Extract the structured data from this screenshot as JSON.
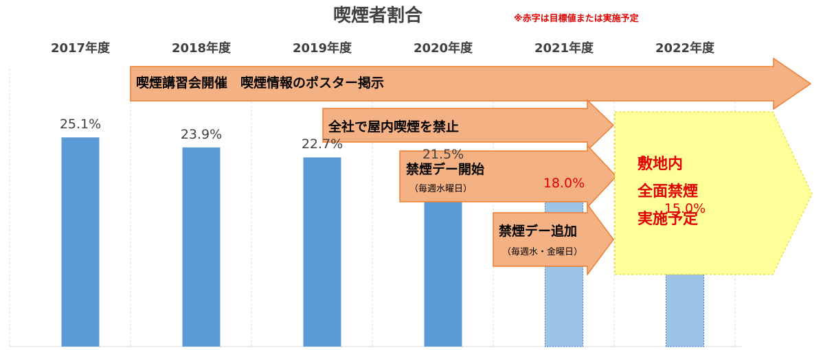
{
  "title": "喫煙者割合",
  "note": "※赤字は目標値または実施予定",
  "colors": {
    "actual": "#5b9bd5",
    "target": "#9dc3e6",
    "target_label": "#e00000",
    "arrow_fill": "#f4b183",
    "arrow_stroke": "#ed7d31",
    "plan_fill": "#ffff99",
    "plan_stroke": "#e6d200",
    "plan_text": "#e00000"
  },
  "chart_data": {
    "type": "bar",
    "categories": [
      "2017年度",
      "2018年度",
      "2019年度",
      "2020年度",
      "2021年度",
      "2022年度"
    ],
    "values": [
      25.1,
      23.9,
      22.7,
      21.5,
      18.0,
      15.0
    ],
    "value_labels": [
      "25.1%",
      "23.9%",
      "22.7%",
      "21.5%",
      "18.0%",
      "15.0%"
    ],
    "is_target": [
      false,
      false,
      false,
      false,
      true,
      true
    ],
    "ylim": [
      0,
      35
    ],
    "title": "喫煙者割合",
    "xlabel": "",
    "ylabel": "",
    "grid": "vertical"
  },
  "initiatives": [
    {
      "label": "喫煙講習会開催　喫煙情報のポスター掲示",
      "start_year": "2018年度",
      "sub": ""
    },
    {
      "label": "全社で屋内喫煙を禁止",
      "start_year": "2019年度",
      "sub": ""
    },
    {
      "label": "禁煙デー開始",
      "start_year": "2020年度",
      "sub": "（毎週水曜日）"
    },
    {
      "label": "禁煙デー追加",
      "start_year": "2021年度",
      "sub": "（毎週水・金曜日）"
    }
  ],
  "plan": {
    "lines": [
      "敷地内",
      "全面禁煙",
      "実施予定"
    ]
  }
}
